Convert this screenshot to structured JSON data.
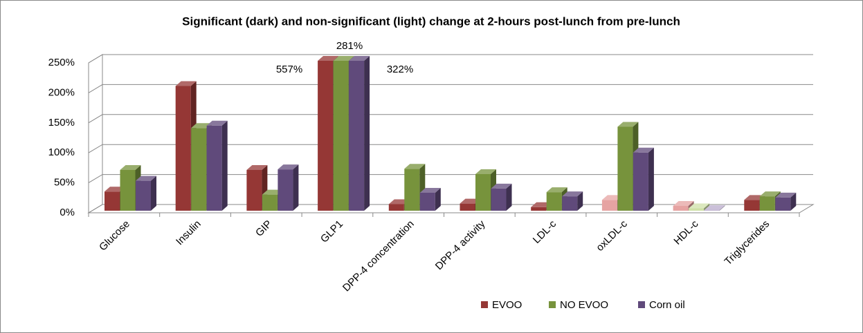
{
  "chart_data": {
    "type": "bar3d",
    "title": "Significant (dark) and non-significant (light) change at 2-hours post-lunch from pre-lunch",
    "categories": [
      "Glucose",
      "Insulin",
      "GIP",
      "GLP1",
      "DPP-4 concentration",
      "DPP-4 activity",
      "LDL-c",
      "oxLDL-c",
      "HDL-c",
      "Triglycerides"
    ],
    "series": [
      {
        "name": "EVOO",
        "color": "#953735",
        "light_color": "#e6a3a2",
        "values": [
          32,
          208,
          68,
          557,
          11,
          12,
          6,
          18,
          8,
          18
        ],
        "value_labels": [
          null,
          null,
          null,
          "557%",
          null,
          null,
          null,
          null,
          null,
          null
        ],
        "significant": [
          true,
          true,
          true,
          true,
          true,
          true,
          true,
          false,
          false,
          true
        ]
      },
      {
        "name": "NO EVOO",
        "color": "#77933c",
        "light_color": "#cfe0a8",
        "values": [
          68,
          138,
          27,
          281,
          70,
          61,
          31,
          140,
          4,
          24
        ],
        "value_labels": [
          null,
          null,
          null,
          "281%",
          null,
          null,
          null,
          null,
          null,
          null
        ],
        "significant": [
          true,
          true,
          true,
          true,
          true,
          true,
          true,
          true,
          false,
          true
        ]
      },
      {
        "name": "Corn oil",
        "color": "#604a7b",
        "light_color": "#b9abcc",
        "values": [
          50,
          142,
          69,
          322,
          30,
          37,
          24,
          97,
          1,
          22
        ],
        "value_labels": [
          null,
          null,
          null,
          "322%",
          null,
          null,
          null,
          null,
          null,
          null
        ],
        "significant": [
          true,
          true,
          true,
          true,
          true,
          true,
          true,
          true,
          false,
          true
        ]
      }
    ],
    "ylim": [
      0,
      250
    ],
    "yticks": [
      {
        "value": 0,
        "label": "0%"
      },
      {
        "value": 50,
        "label": "50%"
      },
      {
        "value": 100,
        "label": "100%"
      },
      {
        "value": 150,
        "label": "150%"
      },
      {
        "value": 200,
        "label": "200%"
      },
      {
        "value": 250,
        "label": "250%"
      }
    ],
    "grid": true,
    "legend": "bottom-right"
  }
}
